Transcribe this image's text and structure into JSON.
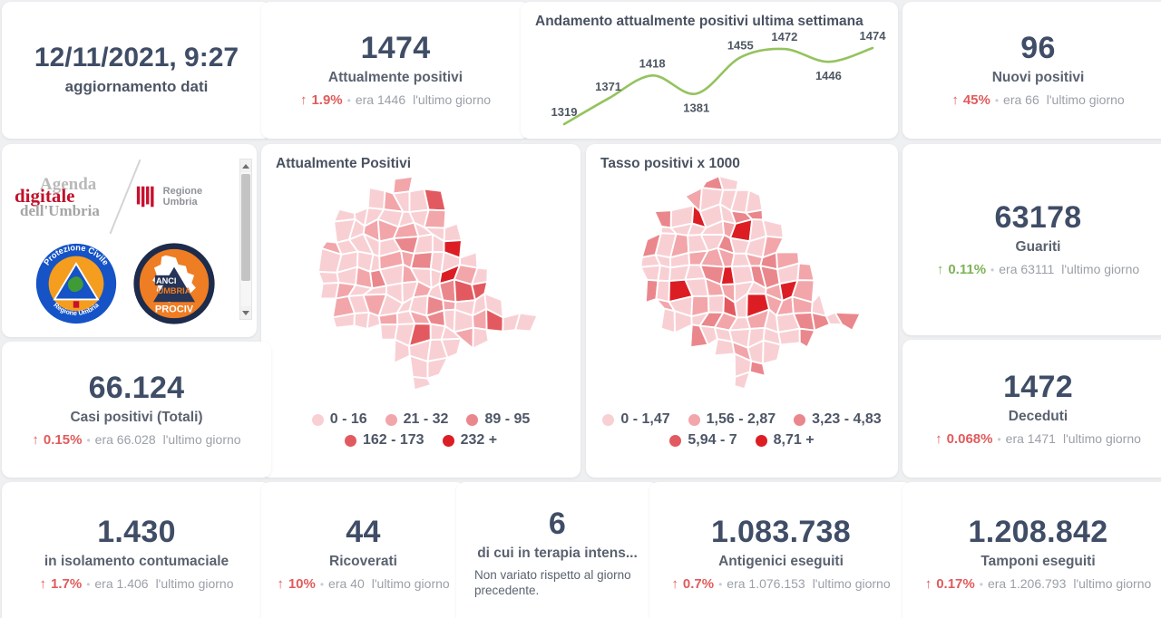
{
  "ui": {
    "bullet": "•",
    "tones": {
      "red": "#e15b5c",
      "green": "#7db356"
    },
    "number_color": "#3f4d66",
    "label_color": "#5a6270",
    "muted_color": "#9ba0a8",
    "background": "#eff0f2"
  },
  "cards": {
    "updated": {
      "value": "12/11/2021, 9:27",
      "label": "aggiornamento dati"
    },
    "attualmente": {
      "value": "1474",
      "label": "Attualmente positivi",
      "trend": {
        "tone": "red",
        "arrow": "↑",
        "pct": "1.9%",
        "era": "era 1446",
        "suffix": "l'ultimo giorno"
      }
    },
    "nuovi": {
      "value": "96",
      "label": "Nuovi positivi",
      "trend": {
        "tone": "red",
        "arrow": "↑",
        "pct": "45%",
        "era": "era 66",
        "suffix": "l'ultimo giorno"
      }
    },
    "guariti": {
      "value": "63178",
      "label": "Guariti",
      "trend": {
        "tone": "green",
        "arrow": "↑",
        "pct": "0.11%",
        "era": "era 63111",
        "suffix": "l'ultimo giorno"
      }
    },
    "casi": {
      "value": "66.124",
      "label": "Casi positivi (Totali)",
      "trend": {
        "tone": "red",
        "arrow": "↑",
        "pct": "0.15%",
        "era": "era 66.028",
        "suffix": "l'ultimo giorno"
      }
    },
    "deceduti": {
      "value": "1472",
      "label": "Deceduti",
      "trend": {
        "tone": "red",
        "arrow": "↑",
        "pct": "0.068%",
        "era": "era 1471",
        "suffix": "l'ultimo giorno"
      }
    },
    "isolamento": {
      "value": "1.430",
      "label": "in isolamento contumaciale",
      "trend": {
        "tone": "red",
        "arrow": "↑",
        "pct": "1.7%",
        "era": "era 1.406",
        "suffix": "l'ultimo giorno"
      }
    },
    "ricoverati": {
      "value": "44",
      "label": "Ricoverati",
      "trend": {
        "tone": "red",
        "arrow": "↑",
        "pct": "10%",
        "era": "era 40",
        "suffix": "l'ultimo giorno"
      }
    },
    "terapia": {
      "value": "6",
      "label": "di cui in terapia intens...",
      "note": "Non variato rispetto al giorno precedente."
    },
    "antigenici": {
      "value": "1.083.738",
      "label": "Antigenici eseguiti",
      "trend": {
        "tone": "red",
        "arrow": "↑",
        "pct": "0.7%",
        "era": "era 1.076.153",
        "suffix": "l'ultimo giorno"
      }
    },
    "tamponi": {
      "value": "1.208.842",
      "label": "Tamponi eseguiti",
      "trend": {
        "tone": "red",
        "arrow": "↑",
        "pct": "0.17%",
        "era": "era 1.206.793",
        "suffix": "l'ultimo giorno"
      }
    }
  },
  "logos": {
    "agenda": {
      "line1": "Agenda",
      "line2": "digitale",
      "line3": "dell'Umbria"
    },
    "regione_umbria": "Regione Umbria",
    "protezione_top": "Protezione Civile",
    "protezione_bottom": "Regione Umbria",
    "anci_line1": "ANCI",
    "anci_line2": "UMBRIA",
    "anci_line3": "PROCIV"
  },
  "chart_data": [
    {
      "type": "line",
      "title": "Andamento attualmente positivi ultima settimana",
      "x": [
        1,
        2,
        3,
        4,
        5,
        6,
        7,
        8
      ],
      "values": [
        1319,
        1371,
        1418,
        1381,
        1455,
        1472,
        1446,
        1474
      ],
      "label_positions": [
        "above",
        "above",
        "above",
        "below",
        "above",
        "above",
        "below",
        "above"
      ],
      "line_color": "#94c35e",
      "label_color": "#4e5763",
      "ylim": [
        1300,
        1500
      ],
      "grid": false,
      "legend_position": "none"
    },
    {
      "type": "choropleth",
      "title": "Attualmente Positivi",
      "legend": [
        {
          "label": "0 - 16",
          "color": "#f8d0d4"
        },
        {
          "label": "21 - 32",
          "color": "#f2a6aa"
        },
        {
          "label": "89 - 95",
          "color": "#ea878c"
        },
        {
          "label": "162 - 173",
          "color": "#e25a5f"
        },
        {
          "label": "232 +",
          "color": "#dc1e24"
        }
      ],
      "seed": 11,
      "shade_weights": [
        0.66,
        0.2,
        0.09,
        0.03,
        0.02
      ],
      "highlights": [
        {
          "x": 0.6,
          "y": 0.44,
          "shade": 4
        },
        {
          "x": 0.44,
          "y": 0.3,
          "shade": 2
        },
        {
          "x": 0.49,
          "y": 0.33,
          "shade": 2
        },
        {
          "x": 0.41,
          "y": 0.34,
          "shade": 1
        },
        {
          "x": 0.55,
          "y": 0.6,
          "shade": 2
        },
        {
          "x": 0.6,
          "y": 0.56,
          "shade": 1
        },
        {
          "x": 0.5,
          "y": 0.72,
          "shade": 3
        },
        {
          "x": 0.35,
          "y": 0.12,
          "shade": 1
        }
      ]
    },
    {
      "type": "choropleth",
      "title": "Tasso positivi x 1000",
      "legend": [
        {
          "label": "0 - 1,47",
          "color": "#f8d0d4"
        },
        {
          "label": "1,56 - 2,87",
          "color": "#f2a6aa"
        },
        {
          "label": "3,23 - 4,83",
          "color": "#ea878c"
        },
        {
          "label": "5,94 - 7",
          "color": "#e25a5f"
        },
        {
          "label": "8,71 +",
          "color": "#dc1e24"
        }
      ],
      "seed": 23,
      "shade_weights": [
        0.58,
        0.26,
        0.11,
        0.03,
        0.02
      ],
      "highlights": [
        {
          "x": 0.26,
          "y": 0.51,
          "shade": 4
        },
        {
          "x": 0.54,
          "y": 0.58,
          "shade": 4
        },
        {
          "x": 0.6,
          "y": 0.36,
          "shade": 2
        },
        {
          "x": 0.66,
          "y": 0.42,
          "shade": 2
        },
        {
          "x": 0.56,
          "y": 0.44,
          "shade": 2
        },
        {
          "x": 0.63,
          "y": 0.48,
          "shade": 1
        },
        {
          "x": 0.47,
          "y": 0.55,
          "shade": 3
        },
        {
          "x": 0.72,
          "y": 0.6,
          "shade": 1
        }
      ]
    }
  ]
}
